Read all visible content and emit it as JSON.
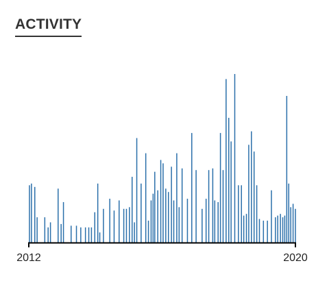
{
  "title": "ACTIVITY",
  "colors": {
    "bar": "#2a6faa",
    "axis": "#000000",
    "text": "#222222"
  },
  "chart_data": {
    "type": "bar",
    "title": "ACTIVITY",
    "xlabel": "",
    "ylabel": "",
    "xlim": [
      2012.0,
      2020.0
    ],
    "ylim": [
      0,
      100
    ],
    "x_tick_labels": [
      "2012",
      "2020"
    ],
    "grid": false,
    "legend": "none",
    "x": [
      2012.02,
      2012.08,
      2012.18,
      2012.25,
      2012.48,
      2012.58,
      2012.65,
      2012.88,
      2012.97,
      2013.04,
      2013.27,
      2013.43,
      2013.56,
      2013.7,
      2013.8,
      2013.88,
      2013.98,
      2014.07,
      2014.13,
      2014.24,
      2014.43,
      2014.56,
      2014.71,
      2014.85,
      2014.93,
      2015.02,
      2015.1,
      2015.17,
      2015.24,
      2015.37,
      2015.51,
      2015.59,
      2015.67,
      2015.73,
      2015.78,
      2015.87,
      2015.96,
      2016.03,
      2016.11,
      2016.19,
      2016.28,
      2016.35,
      2016.44,
      2016.51,
      2016.6,
      2016.76,
      2016.89,
      2017.02,
      2017.2,
      2017.32,
      2017.4,
      2017.52,
      2017.58,
      2017.68,
      2017.75,
      2017.83,
      2017.92,
      2018.0,
      2018.07,
      2018.18,
      2018.29,
      2018.38,
      2018.45,
      2018.53,
      2018.6,
      2018.68,
      2018.76,
      2018.84,
      2018.92,
      2019.04,
      2019.16,
      2019.28,
      2019.4,
      2019.47,
      2019.55,
      2019.62,
      2019.68,
      2019.74,
      2019.8,
      2019.86,
      2019.93,
      2020.0
    ],
    "values": [
      34,
      35,
      33,
      15,
      15,
      9,
      12,
      32,
      11,
      24,
      10,
      10,
      9,
      9,
      9,
      9,
      18,
      35,
      6,
      20,
      26,
      19,
      25,
      20,
      20,
      21,
      39,
      12,
      62,
      35,
      53,
      13,
      25,
      29,
      42,
      31,
      49,
      47,
      32,
      30,
      45,
      25,
      53,
      21,
      44,
      26,
      65,
      43,
      20,
      26,
      43,
      44,
      25,
      24,
      65,
      43,
      97,
      74,
      60,
      100,
      34,
      34,
      16,
      17,
      58,
      66,
      54,
      34,
      14,
      13,
      13,
      31,
      15,
      16,
      17,
      15,
      16,
      87,
      35,
      21,
      23,
      20
    ]
  }
}
